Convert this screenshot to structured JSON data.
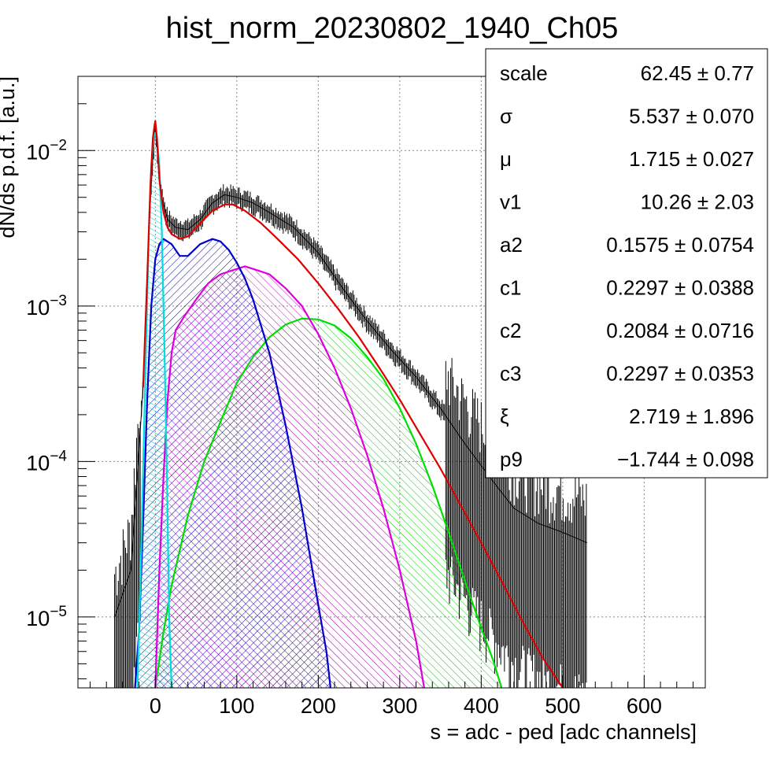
{
  "chart_data": {
    "type": "line",
    "title": "hist_norm_20230802_1940_Ch05",
    "xlabel": "s = adc - ped [adc channels]",
    "ylabel": "dN/ds p.d.f. [a.u.]",
    "xlim": [
      -95,
      675
    ],
    "ylim": [
      3.5e-06,
      0.03
    ],
    "yscale": "log",
    "grid": true,
    "x_ticks": [
      0,
      100,
      200,
      300,
      400,
      500,
      600
    ],
    "y_ticks": [
      {
        "value": 1e-05,
        "base": "10",
        "exp": "−5"
      },
      {
        "value": 0.0001,
        "base": "10",
        "exp": "−4"
      },
      {
        "value": 0.001,
        "base": "10",
        "exp": "−3"
      },
      {
        "value": 0.01,
        "base": "10",
        "exp": "−2"
      }
    ],
    "series": [
      {
        "role": "data-histogram",
        "color": "#000000",
        "x": [
          -50,
          -30,
          -15,
          -8,
          -3,
          0,
          3,
          8,
          15,
          25,
          40,
          55,
          70,
          85,
          100,
          120,
          140,
          170,
          200,
          230,
          260,
          290,
          320,
          350,
          380,
          410,
          440,
          470,
          500,
          530
        ],
        "y": [
          1e-05,
          2e-05,
          0.0003,
          0.003,
          0.009,
          0.014,
          0.009,
          0.005,
          0.0036,
          0.0032,
          0.0031,
          0.0036,
          0.0046,
          0.0052,
          0.005,
          0.0046,
          0.004,
          0.0032,
          0.0022,
          0.0013,
          0.0008,
          0.00052,
          0.00035,
          0.00022,
          0.00013,
          8e-05,
          5e-05,
          4e-05,
          3.5e-05,
          3e-05
        ]
      },
      {
        "role": "total-fit",
        "color": "#dd0000",
        "x": [
          -15,
          -10,
          -6,
          -3,
          -1,
          0,
          2,
          5,
          10,
          15,
          20,
          30,
          40,
          55,
          70,
          85,
          95,
          110,
          130,
          150,
          175,
          200,
          225,
          250,
          275,
          300,
          325,
          350,
          375,
          400,
          425,
          450,
          475,
          500
        ],
        "y": [
          0.0003,
          0.0015,
          0.006,
          0.012,
          0.0145,
          0.0155,
          0.012,
          0.0065,
          0.004,
          0.0032,
          0.0029,
          0.0027,
          0.0028,
          0.0034,
          0.0041,
          0.0045,
          0.0045,
          0.0041,
          0.0034,
          0.0027,
          0.002,
          0.0014,
          0.00095,
          0.00063,
          0.0004,
          0.00025,
          0.00015,
          9e-05,
          5.2e-05,
          3e-05,
          1.7e-05,
          9.5e-06,
          5.5e-06,
          3.5e-06
        ]
      },
      {
        "role": "pedestal-component",
        "color": "#00dddd",
        "x": [
          -22,
          -18,
          -12,
          -8,
          -5,
          -2,
          0,
          2,
          5,
          8,
          11,
          14,
          17,
          20
        ],
        "y": [
          3.5e-06,
          2e-05,
          0.0004,
          0.003,
          0.008,
          0.012,
          0.013,
          0.012,
          0.008,
          0.003,
          0.0006,
          0.0001,
          1e-05,
          3.5e-06
        ]
      },
      {
        "role": "1-photoelectron-component",
        "color": "#0000cc",
        "x": [
          -25,
          -20,
          -15,
          -10,
          -5,
          0,
          5,
          10,
          20,
          30,
          40,
          55,
          70,
          80,
          90,
          100,
          110,
          120,
          140,
          160,
          180,
          200,
          210,
          215
        ],
        "y": [
          3.5e-06,
          8e-06,
          4e-05,
          0.00025,
          0.001,
          0.002,
          0.0025,
          0.0027,
          0.0025,
          0.0021,
          0.0021,
          0.0025,
          0.0027,
          0.0026,
          0.0023,
          0.0019,
          0.0015,
          0.0011,
          0.0005,
          0.00017,
          5e-05,
          1.2e-05,
          6e-06,
          3.5e-06
        ]
      },
      {
        "role": "2-photoelectron-component",
        "color": "#dd00dd",
        "x": [
          0,
          5,
          10,
          15,
          20,
          25,
          35,
          50,
          65,
          80,
          95,
          110,
          125,
          140,
          160,
          180,
          200,
          220,
          240,
          260,
          280,
          300,
          320,
          330
        ],
        "y": [
          3.5e-06,
          2e-05,
          8e-05,
          0.00025,
          0.0005,
          0.0007,
          0.00085,
          0.0011,
          0.0014,
          0.0016,
          0.0017,
          0.0018,
          0.0017,
          0.0016,
          0.0013,
          0.001,
          0.00066,
          0.0004,
          0.00022,
          0.00011,
          5e-05,
          2e-05,
          7e-06,
          3.5e-06
        ]
      },
      {
        "role": "3-photoelectron-component",
        "color": "#00dd00",
        "x": [
          0,
          10,
          20,
          40,
          60,
          80,
          100,
          120,
          140,
          160,
          180,
          200,
          220,
          240,
          260,
          280,
          300,
          320,
          340,
          360,
          380,
          400,
          415,
          425
        ],
        "y": [
          3.5e-06,
          8e-06,
          1.6e-05,
          4.5e-05,
          0.0001,
          0.00018,
          0.00032,
          0.00047,
          0.00063,
          0.00076,
          0.00083,
          0.00082,
          0.00075,
          0.00062,
          0.00047,
          0.00034,
          0.00022,
          0.00013,
          7e-05,
          3.5e-05,
          1.7e-05,
          8.5e-06,
          5.2e-06,
          3.5e-06
        ]
      }
    ],
    "stats_box": {
      "rows": [
        {
          "label": "scale",
          "value": "62.45 ± 0.77"
        },
        {
          "label": "σ",
          "value": "5.537 ± 0.070"
        },
        {
          "label": "μ",
          "value": "1.715 ± 0.027"
        },
        {
          "label": "v1",
          "value": "10.26 ± 2.03"
        },
        {
          "label": "a2",
          "value": "0.1575 ± 0.0754"
        },
        {
          "label": "c1",
          "value": "0.2297 ± 0.0388"
        },
        {
          "label": "c2",
          "value": "0.2084 ± 0.0716"
        },
        {
          "label": "c3",
          "value": "0.2297 ± 0.0353"
        },
        {
          "label": "ξ",
          "value": "2.719 ± 1.896"
        },
        {
          "label": "p9",
          "value": "−1.744 ± 0.098"
        }
      ]
    }
  }
}
